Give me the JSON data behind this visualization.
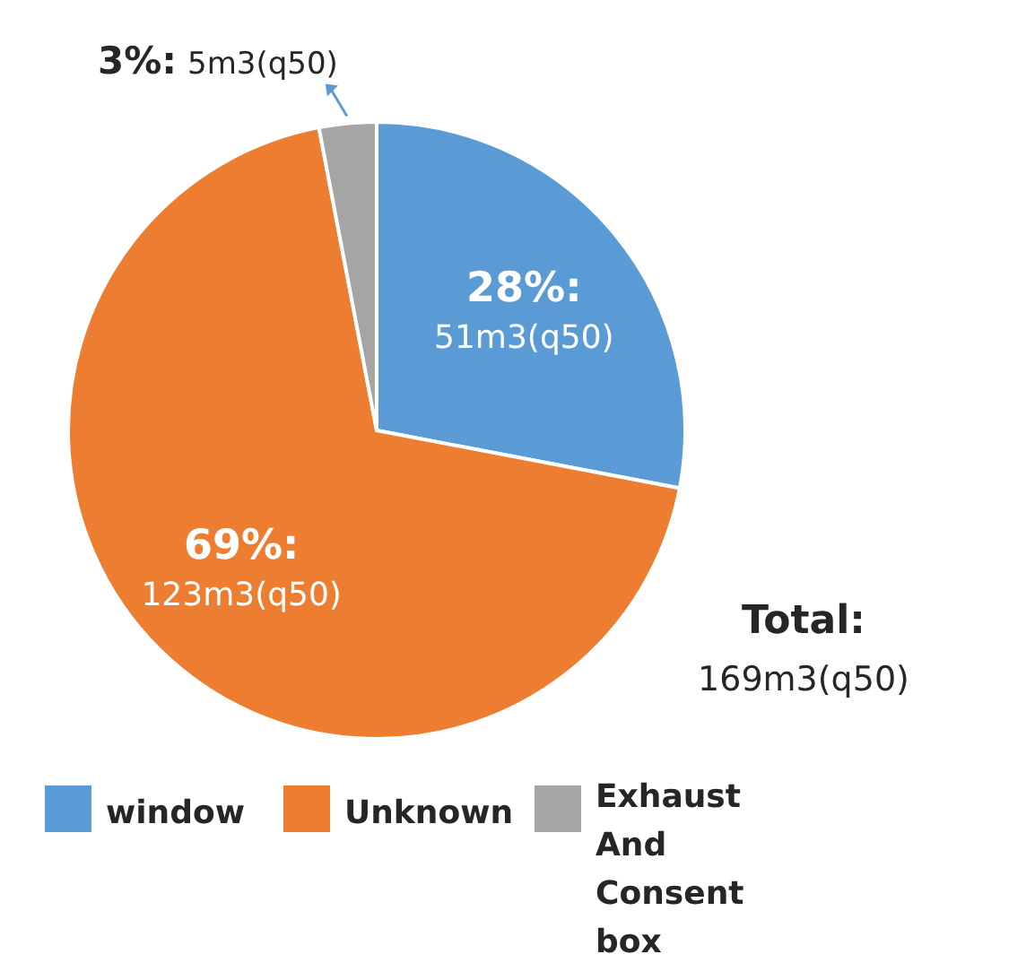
{
  "chart_data": {
    "type": "pie",
    "categories": [
      "window",
      "Unknown",
      "Exhaust And Consent box"
    ],
    "values": [
      28,
      69,
      3
    ],
    "colors": [
      "#5b9bd5",
      "#ed7d31",
      "#a5a5a5"
    ],
    "value_labels": [
      "28%:\n51m3(q50)",
      "69%:\n123m3(q50)",
      "3%:\n5m3(q50)"
    ],
    "annotations": [
      "Total:\n169m3(q50)"
    ],
    "legend": "bottom"
  }
}
